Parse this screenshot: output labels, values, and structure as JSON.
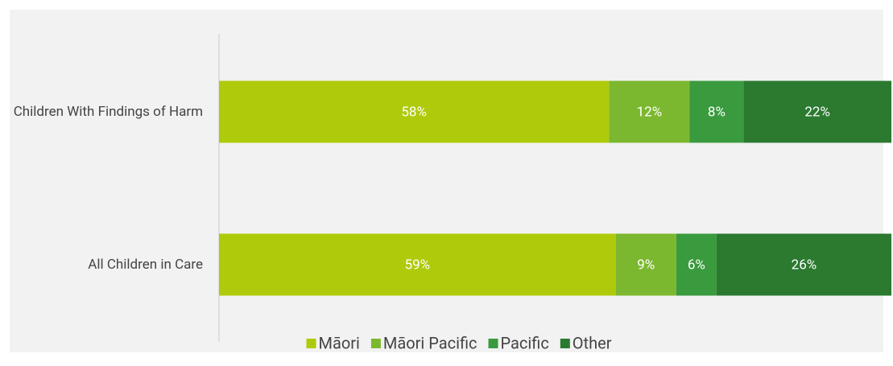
{
  "chart_data": {
    "type": "stacked-bar-horizontal",
    "categories": [
      "Children With Findings of Harm",
      "All Children in Care"
    ],
    "series": [
      {
        "name": "Māori",
        "color": "#afca0b",
        "values": [
          58,
          59
        ],
        "value_labels": [
          "58%",
          "59%"
        ]
      },
      {
        "name": "Māori Pacific",
        "color": "#7cb82f",
        "values": [
          12,
          9
        ],
        "value_labels": [
          "12%",
          "9%"
        ]
      },
      {
        "name": "Pacific",
        "color": "#3a9a3e",
        "values": [
          8,
          6
        ],
        "value_labels": [
          "8%",
          "6%"
        ]
      },
      {
        "name": "Other",
        "color": "#2b7a30",
        "values": [
          22,
          26
        ],
        "value_labels": [
          "22%",
          "26%"
        ]
      }
    ],
    "legend": "bottom"
  }
}
